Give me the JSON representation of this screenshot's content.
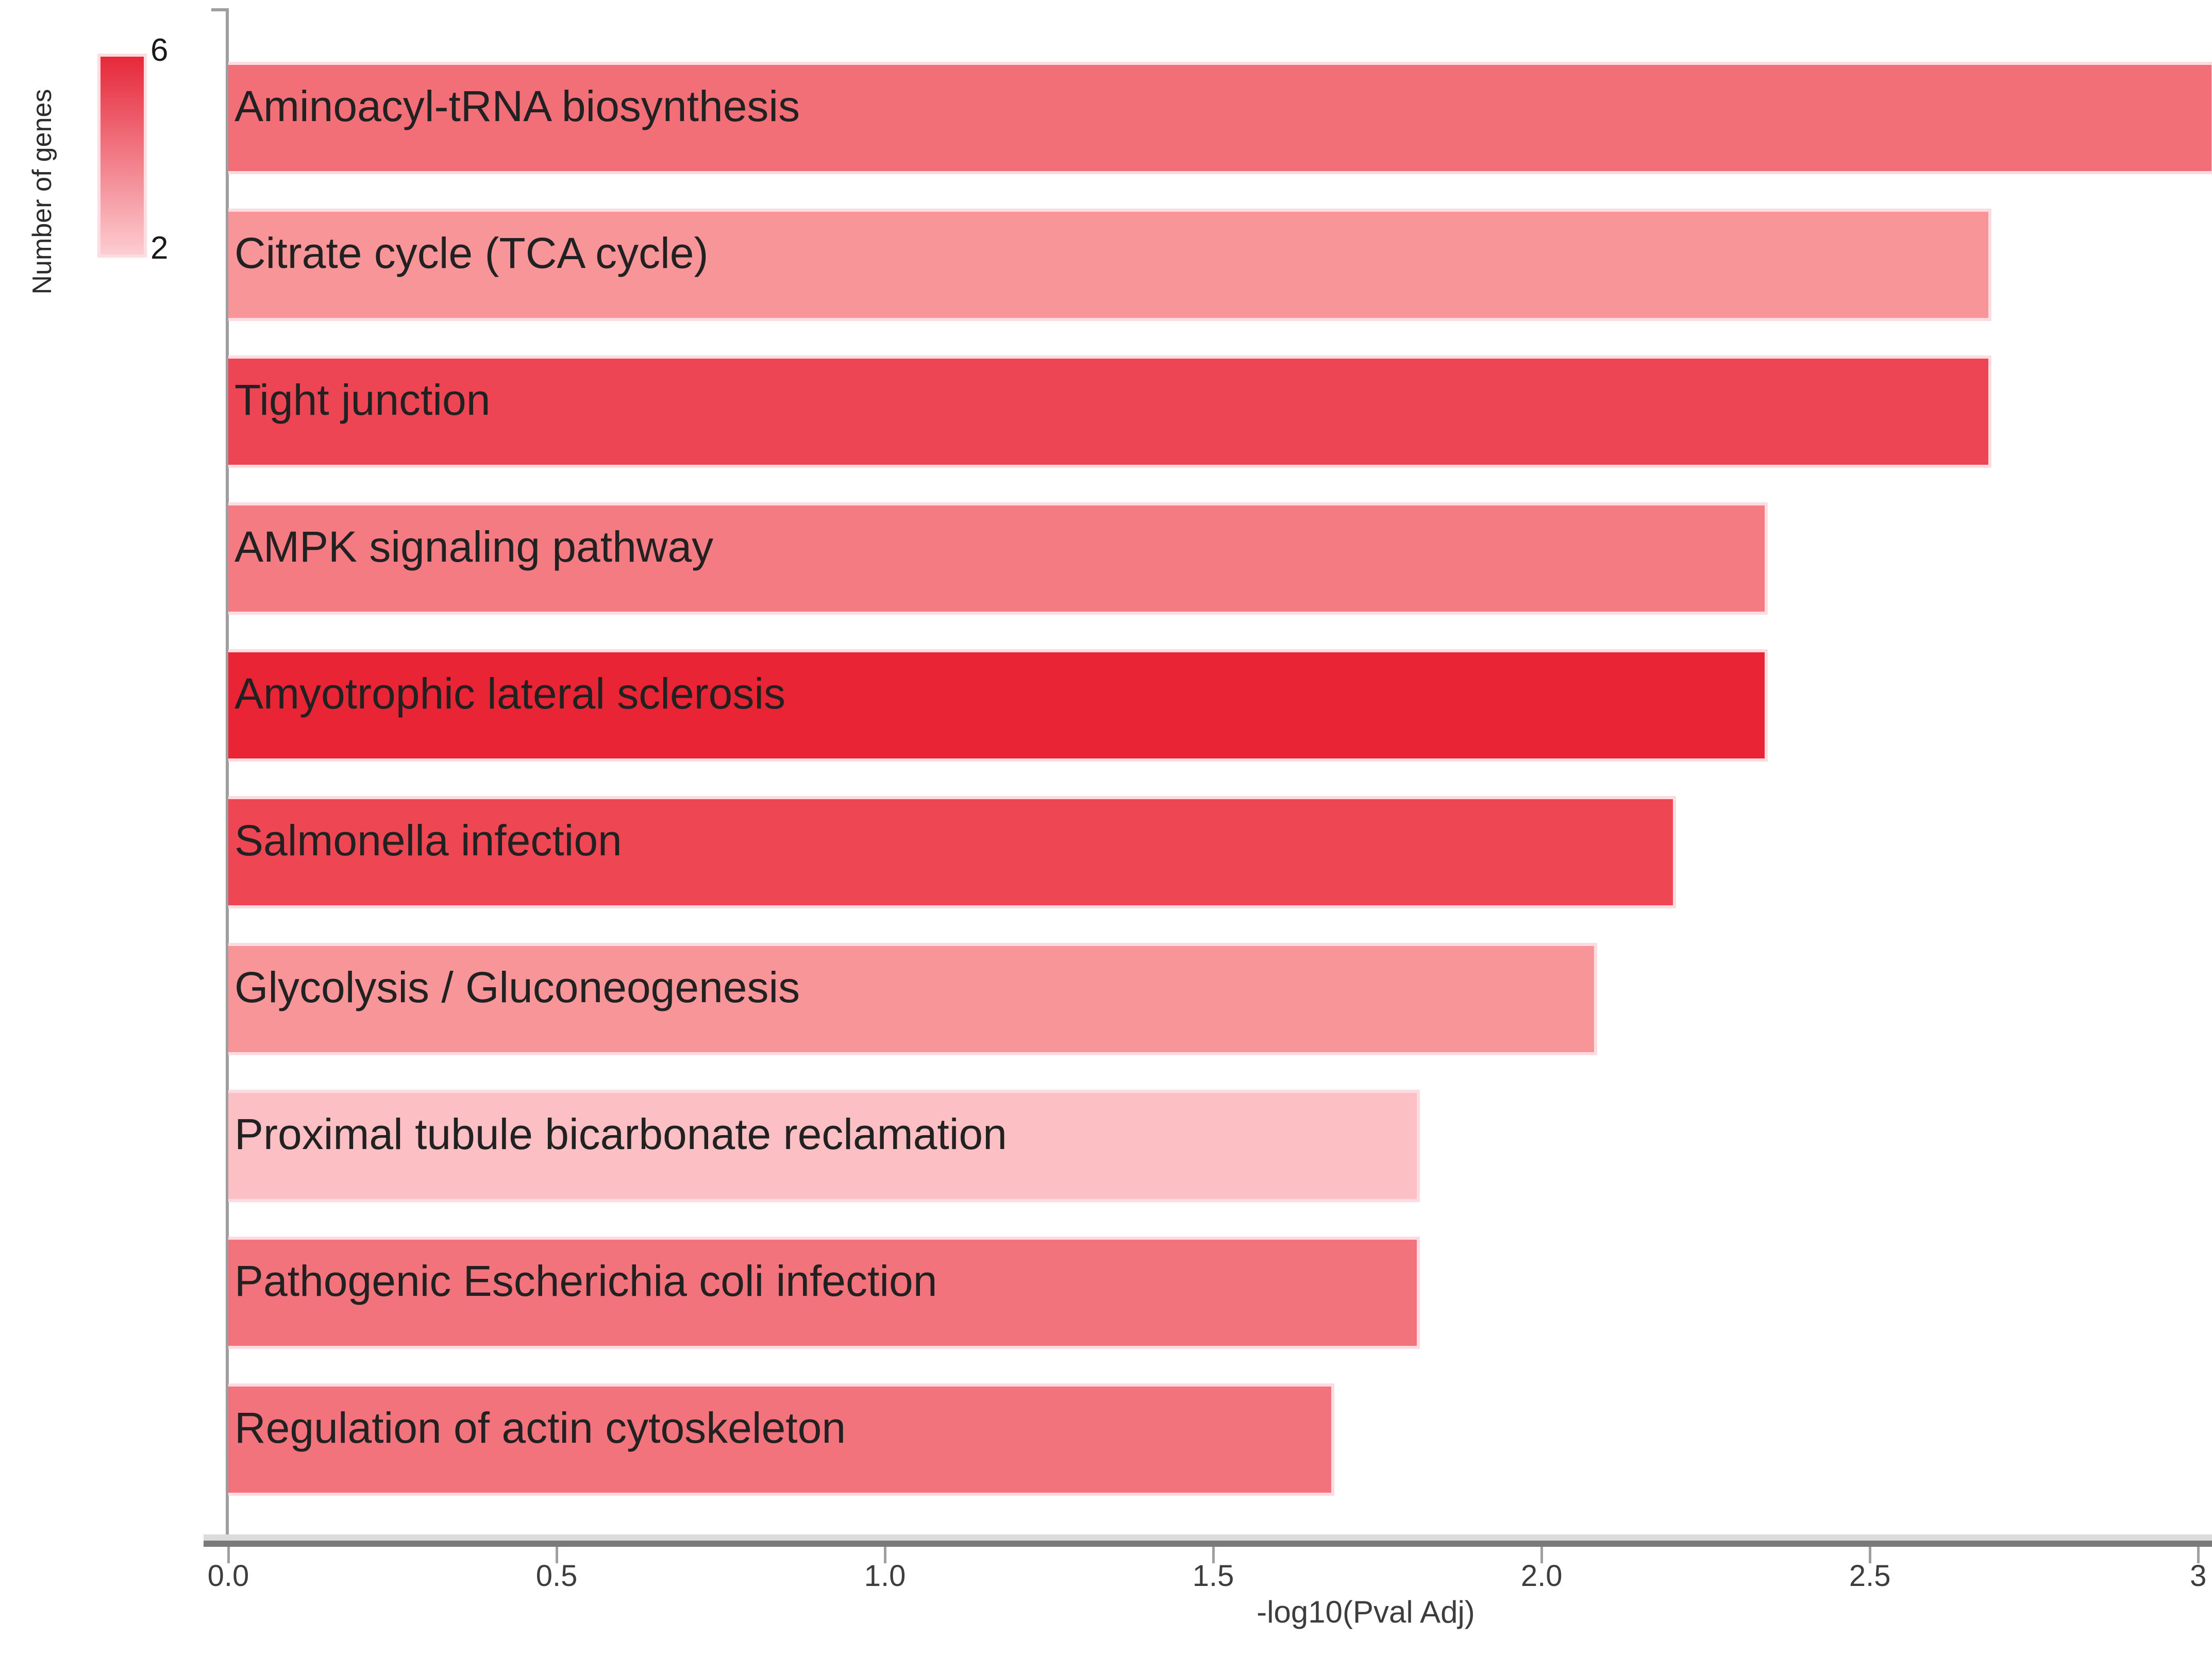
{
  "chart_data": {
    "type": "bar",
    "orientation": "horizontal",
    "title": "",
    "xlabel": "-log10(Pval Adj)",
    "ylabel": "",
    "xlim": [
      0,
      3
    ],
    "x_plot_max": 3.021,
    "x_ticks": [
      "0.0",
      "0.5",
      "1.0",
      "1.5",
      "2.0",
      "2.5",
      "3"
    ],
    "x_tick_values": [
      0,
      0.5,
      1,
      1.5,
      2,
      2.5,
      3
    ],
    "grid": "off",
    "legend_position": "top-left",
    "categories": [
      "Aminoacyl-tRNA biosynthesis",
      "Citrate cycle (TCA cycle)",
      "Tight junction",
      "AMPK signaling pathway",
      "Amyotrophic lateral sclerosis",
      "Salmonella infection",
      "Glycolysis / Gluconeogenesis",
      "Proximal tubule bicarbonate reclamation",
      "Pathogenic Escherichia coli infection",
      "Regulation of actin cytoskeleton"
    ],
    "values": [
      3.02,
      2.68,
      2.68,
      2.34,
      2.34,
      2.2,
      2.08,
      1.81,
      1.81,
      1.68
    ],
    "series_color_encodes": "number_of_genes",
    "number_of_genes_estimated": [
      4,
      3,
      5,
      4,
      6,
      5,
      3,
      2,
      4,
      4
    ],
    "bar_colors": [
      "#f26f77",
      "#f79599",
      "#ee4554",
      "#f47b82",
      "#e92434",
      "#ef4653",
      "#f79599",
      "#fcbfc3",
      "#f2737b",
      "#f2737b"
    ]
  },
  "legend": {
    "title": "Number of genes",
    "max_label": "6",
    "min_label": "2",
    "gradient_top_color": "#e6283a",
    "gradient_bottom_color": "#fccdd1"
  }
}
